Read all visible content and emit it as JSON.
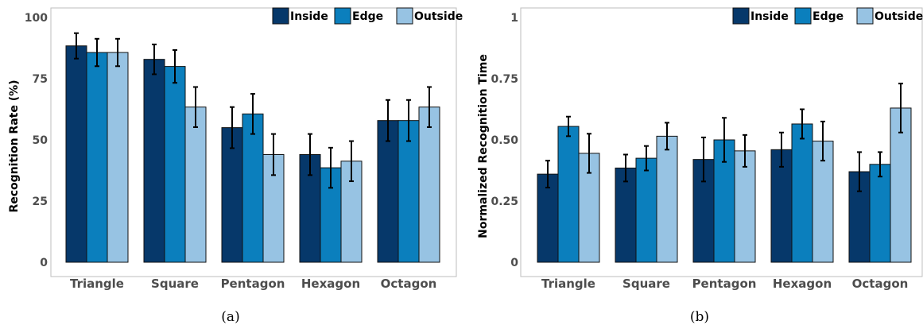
{
  "colors": {
    "Inside": "#06386a",
    "Edge": "#0b7fbd",
    "Outside": "#97c3e3"
  },
  "chart_data": [
    {
      "type": "bar",
      "caption": "(a)",
      "ylabel": "Recognition Rate (%)",
      "ylim": [
        0,
        100
      ],
      "yticks": [
        "0",
        "25",
        "50",
        "75",
        "100"
      ],
      "ytick_values": [
        0,
        25,
        50,
        75,
        100
      ],
      "legend_position": "top-right",
      "categories": [
        "Triangle",
        "Square",
        "Pentagon",
        "Hexagon",
        "Octagon"
      ],
      "series": [
        {
          "name": "Inside",
          "values": [
            88.4,
            82.9,
            55.0,
            44.0,
            57.9
          ],
          "errors": [
            5.2,
            6.1,
            8.4,
            8.4,
            8.4
          ]
        },
        {
          "name": "Edge",
          "values": [
            85.7,
            80.0,
            60.6,
            38.6,
            57.9
          ],
          "errors": [
            5.6,
            6.7,
            8.2,
            8.2,
            8.4
          ]
        },
        {
          "name": "Outside",
          "values": [
            85.7,
            63.4,
            44.0,
            41.3,
            63.4
          ],
          "errors": [
            5.6,
            8.2,
            8.4,
            8.2,
            8.2
          ]
        }
      ]
    },
    {
      "type": "bar",
      "caption": "(b)",
      "ylabel": "Normalized Recognition Time",
      "ylim": [
        0,
        1
      ],
      "yticks": [
        "0",
        "0.25",
        "0.50",
        "0.75",
        "1"
      ],
      "ytick_values": [
        0,
        0.25,
        0.5,
        0.75,
        1
      ],
      "legend_position": "top-right",
      "categories": [
        "Triangle",
        "Square",
        "Pentagon",
        "Hexagon",
        "Octagon"
      ],
      "series": [
        {
          "name": "Inside",
          "values": [
            0.36,
            0.385,
            0.42,
            0.46,
            0.37
          ],
          "errors": [
            0.055,
            0.055,
            0.09,
            0.07,
            0.08
          ]
        },
        {
          "name": "Edge",
          "values": [
            0.555,
            0.425,
            0.5,
            0.565,
            0.4
          ],
          "errors": [
            0.04,
            0.05,
            0.09,
            0.06,
            0.05
          ]
        },
        {
          "name": "Outside",
          "values": [
            0.445,
            0.515,
            0.455,
            0.495,
            0.63
          ],
          "errors": [
            0.08,
            0.055,
            0.065,
            0.08,
            0.1
          ]
        }
      ]
    }
  ]
}
